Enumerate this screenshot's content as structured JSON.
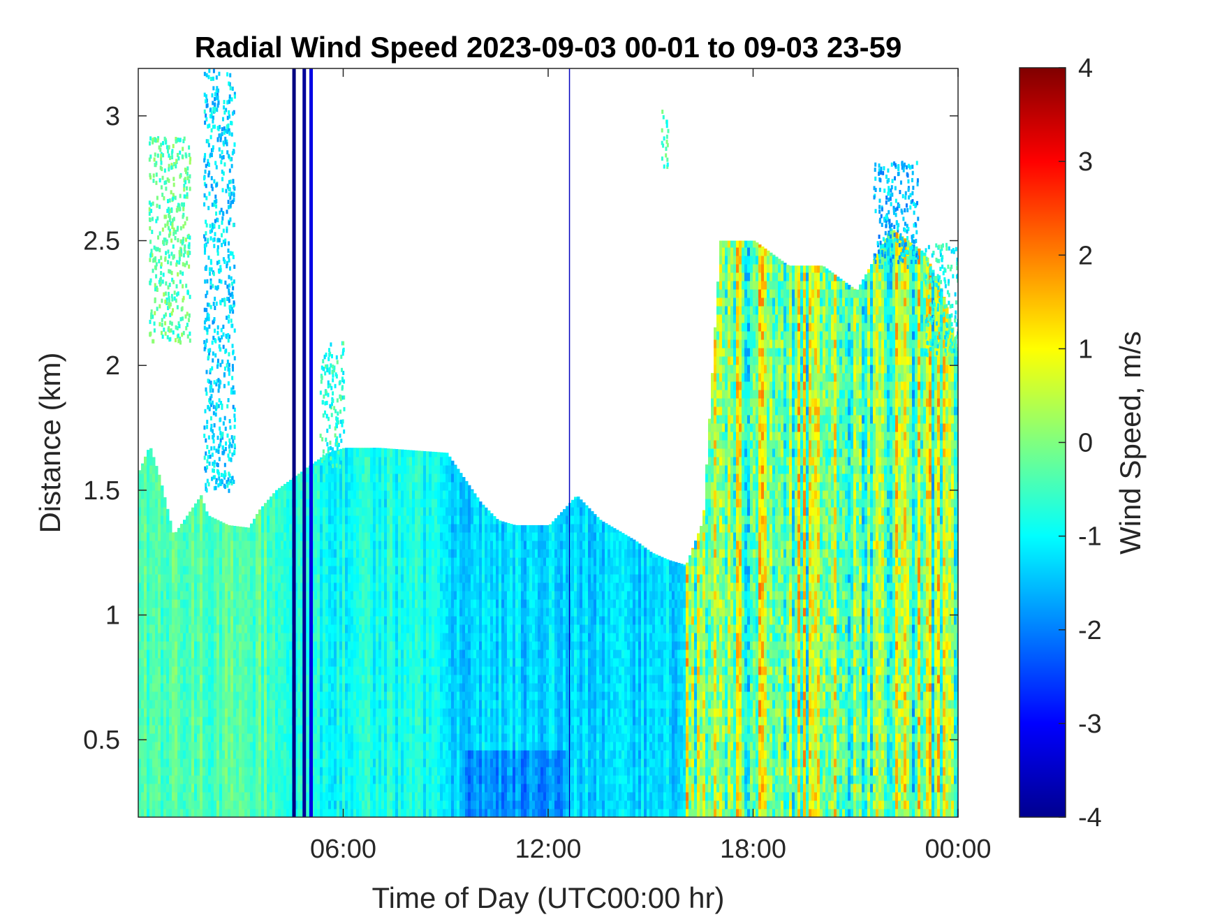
{
  "chart_data": {
    "type": "heatmap",
    "title": "Radial Wind Speed 2023-09-03 00-01 to 09-03 23-59",
    "xlabel": "Time of Day (UTC00:00 hr)",
    "ylabel": "Distance (km)",
    "x_range_hours": [
      0,
      24
    ],
    "xlim": [
      0,
      24
    ],
    "ylim": [
      0.19,
      3.19
    ],
    "x_tick_values": [
      6,
      12,
      18,
      24
    ],
    "x_tick_labels": [
      "06:00",
      "12:00",
      "18:00",
      "00:00"
    ],
    "y_tick_values": [
      0.5,
      1,
      1.5,
      2,
      2.5,
      3
    ],
    "y_tick_labels": [
      "0.5",
      "1",
      "1.5",
      "2",
      "2.5",
      "3"
    ],
    "colorbar": {
      "label": "Wind Speed, m/s",
      "colormap": "jet",
      "clim": [
        -4,
        4
      ],
      "tick_values": [
        4,
        3,
        2,
        1,
        0,
        -1,
        -2,
        -3,
        -4
      ],
      "tick_labels": [
        "4",
        "3",
        "2",
        "1",
        "0",
        "-1",
        "-2",
        "-3",
        "-4"
      ]
    },
    "data_top_profile_km": [
      [
        0.0,
        1.58
      ],
      [
        0.3,
        1.68
      ],
      [
        0.6,
        1.55
      ],
      [
        1.0,
        1.32
      ],
      [
        1.4,
        1.4
      ],
      [
        1.8,
        1.48
      ],
      [
        2.0,
        1.4
      ],
      [
        2.6,
        1.36
      ],
      [
        3.2,
        1.35
      ],
      [
        3.5,
        1.42
      ],
      [
        4.0,
        1.5
      ],
      [
        4.5,
        1.55
      ],
      [
        5.0,
        1.6
      ],
      [
        5.5,
        1.65
      ],
      [
        6.0,
        1.67
      ],
      [
        7.0,
        1.67
      ],
      [
        8.0,
        1.66
      ],
      [
        9.0,
        1.65
      ],
      [
        9.5,
        1.55
      ],
      [
        10.0,
        1.45
      ],
      [
        10.5,
        1.38
      ],
      [
        11.0,
        1.36
      ],
      [
        12.0,
        1.36
      ],
      [
        12.8,
        1.48
      ],
      [
        13.5,
        1.38
      ],
      [
        14.5,
        1.3
      ],
      [
        15.0,
        1.25
      ],
      [
        15.5,
        1.22
      ],
      [
        16.0,
        1.2
      ],
      [
        16.5,
        1.38
      ],
      [
        17.0,
        2.5
      ],
      [
        18.0,
        2.5
      ],
      [
        19.0,
        2.4
      ],
      [
        20.0,
        2.4
      ],
      [
        21.0,
        2.3
      ],
      [
        22.0,
        2.55
      ],
      [
        23.0,
        2.45
      ],
      [
        23.5,
        2.3
      ],
      [
        24.0,
        2.05
      ]
    ],
    "scatter_plumes": [
      {
        "t_start": 0.3,
        "t_end": 1.5,
        "d_bottom": 2.1,
        "d_top": 2.92,
        "value_mps": -0.3
      },
      {
        "t_start": 1.9,
        "t_end": 2.8,
        "d_bottom": 1.5,
        "d_top": 3.19,
        "value_mps": -1.3
      },
      {
        "t_start": 5.3,
        "t_end": 6.0,
        "d_bottom": 1.6,
        "d_top": 2.1,
        "value_mps": -0.7
      },
      {
        "t_start": 15.3,
        "t_end": 15.5,
        "d_bottom": 2.8,
        "d_top": 3.05,
        "value_mps": -0.5
      },
      {
        "t_start": 21.5,
        "t_end": 22.8,
        "d_bottom": 2.4,
        "d_top": 2.82,
        "value_mps": -1.5
      },
      {
        "t_start": 23.0,
        "t_end": 24.0,
        "d_bottom": 2.05,
        "d_top": 2.5,
        "value_mps": -0.8
      }
    ],
    "vertical_streaks": [
      {
        "t_hour": 4.55,
        "value_mps": -4.0,
        "d_top": 3.19
      },
      {
        "t_hour": 4.85,
        "value_mps": -3.8,
        "d_top": 3.19
      },
      {
        "t_hour": 5.05,
        "value_mps": -3.2,
        "d_top": 3.19
      },
      {
        "t_hour": 12.65,
        "value_mps": -3.5,
        "d_top": 3.19
      }
    ],
    "regime_note_values_mps": {
      "00-04h": -0.4,
      "04-09h": -0.9,
      "09-16h": -1.3,
      "16-24h": 0.1
    }
  }
}
